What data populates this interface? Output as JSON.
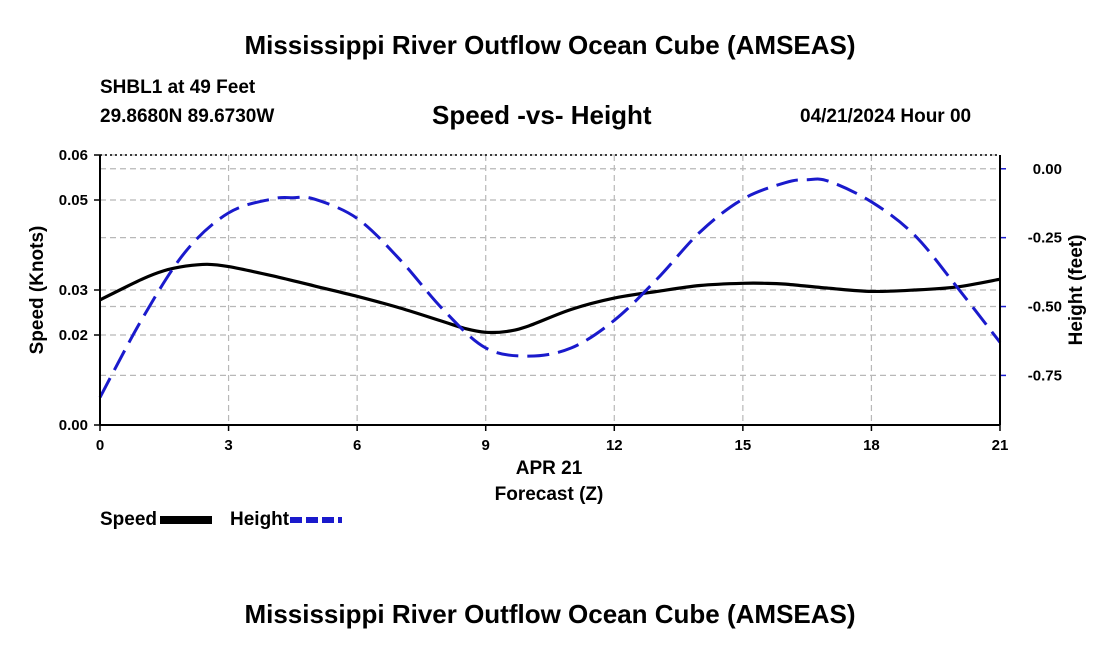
{
  "page": {
    "title": "Mississippi River Outflow Ocean Cube (AMSEAS)",
    "title_repeat": "Mississippi River Outflow Ocean Cube (AMSEAS)",
    "station": "SHBL1 at 49 Feet",
    "coordinates": "29.8680N  89.6730W",
    "date_hour": "04/21/2024 Hour 00"
  },
  "chart_data": {
    "type": "line",
    "title": "Speed -vs- Height",
    "xlabel_line1": "APR 21",
    "xlabel": "Forecast (Z)",
    "ylabel": "Speed (Knots)",
    "y2label": "Height (feet)",
    "xlim": [
      0,
      21
    ],
    "ylim": [
      0,
      0.06
    ],
    "y2lim": [
      -0.93,
      0.05
    ],
    "x_ticks": [
      0,
      3,
      6,
      9,
      12,
      15,
      18,
      21
    ],
    "x_tick_labels": [
      "0",
      "3",
      "6",
      "9",
      "12",
      "15",
      "18",
      "21"
    ],
    "y_ticks": [
      0,
      0.02,
      0.03,
      0.05,
      0.06
    ],
    "y_tick_labels": [
      "0.00",
      "0.02",
      "0.03",
      "0.05",
      "0.06"
    ],
    "y2_ticks": [
      0,
      -0.25,
      -0.5,
      -0.75
    ],
    "y2_tick_labels": [
      "0.00",
      "-0.25",
      "-0.50",
      "-0.75"
    ],
    "grid": true,
    "series": [
      {
        "name": "Speed",
        "axis": "left",
        "color": "#000000",
        "style": "solid",
        "x": [
          0,
          1,
          1.5,
          2,
          2.5,
          3,
          4,
          5,
          6,
          7,
          8,
          8.5,
          9,
          9.5,
          10,
          11,
          12,
          13,
          14,
          15,
          15.5,
          16,
          17,
          18,
          19,
          20,
          21
        ],
        "values": [
          0.0278,
          0.0325,
          0.0343,
          0.0353,
          0.0357,
          0.0352,
          0.0332,
          0.0309,
          0.0286,
          0.026,
          0.023,
          0.0215,
          0.0206,
          0.0208,
          0.022,
          0.0257,
          0.0282,
          0.0297,
          0.031,
          0.0315,
          0.0315,
          0.0313,
          0.0304,
          0.0297,
          0.03,
          0.0307,
          0.0324
        ]
      },
      {
        "name": "Height",
        "axis": "right",
        "color": "#1a1acc",
        "style": "dashed",
        "x": [
          0,
          1,
          2,
          3,
          4,
          4.5,
          5,
          6,
          7,
          8,
          9,
          10,
          11,
          12,
          13,
          14,
          15,
          16,
          16.5,
          17,
          18,
          19,
          20,
          21
        ],
        "values": [
          -0.83,
          -0.54,
          -0.3,
          -0.16,
          -0.11,
          -0.105,
          -0.11,
          -0.18,
          -0.33,
          -0.51,
          -0.65,
          -0.68,
          -0.65,
          -0.55,
          -0.4,
          -0.23,
          -0.11,
          -0.05,
          -0.04,
          -0.045,
          -0.12,
          -0.24,
          -0.43,
          -0.63
        ]
      }
    ]
  },
  "legend": [
    {
      "label": "Speed",
      "color": "#000000",
      "style": "solid"
    },
    {
      "label": "Height",
      "color": "#1a1acc",
      "style": "dashed"
    }
  ]
}
